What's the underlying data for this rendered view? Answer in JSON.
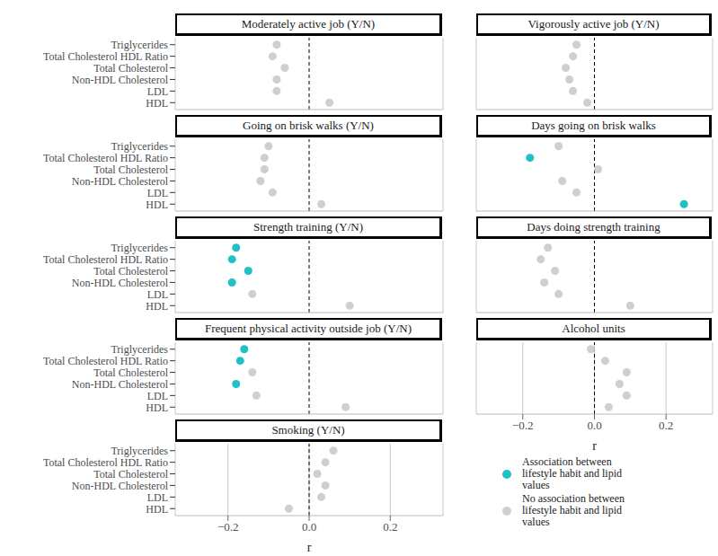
{
  "chart_data": [
    {
      "type": "scatter",
      "title": "Moderately active job (Y/N)",
      "categories": [
        "Triglycerides",
        "Total Cholesterol HDL Ratio",
        "Total Cholesterol",
        "Non-HDL Cholesterol",
        "LDL",
        "HDL"
      ],
      "series": [
        {
          "name": "Association between lifestyle habit and lipid values",
          "color": "#20c0c7",
          "values": [
            null,
            null,
            null,
            null,
            null,
            null
          ]
        },
        {
          "name": "No association between lifestyle habit and lipid values",
          "color": "#cfcfcf",
          "values": [
            -0.08,
            -0.09,
            -0.06,
            -0.08,
            -0.08,
            0.05
          ]
        }
      ],
      "xlim": [
        -0.33,
        0.33
      ],
      "xticks": [
        {
          "value": -0.2,
          "label": "−0.2"
        },
        {
          "value": 0,
          "label": "0.0"
        },
        0.2
      ],
      "grid": true,
      "tick_labels": "y"
    },
    {
      "type": "scatter",
      "title": "Vigorously active job (Y/N)",
      "categories": [
        "Triglycerides",
        "Total Cholesterol HDL Ratio",
        "Total Cholesterol",
        "Non-HDL Cholesterol",
        "LDL",
        "HDL"
      ],
      "series": [
        {
          "name": "Association between lifestyle habit and lipid values",
          "color": "#20c0c7",
          "values": [
            null,
            null,
            null,
            null,
            null,
            null
          ]
        },
        {
          "name": "No association between lifestyle habit and lipid values",
          "color": "#cfcfcf",
          "values": [
            -0.05,
            -0.06,
            -0.08,
            -0.07,
            -0.06,
            -0.02
          ]
        }
      ],
      "xlim": [
        -0.33,
        0.33
      ],
      "xticks": [
        {
          "value": -0.2,
          "label": "−0.2"
        },
        {
          "value": 0,
          "label": "0.0"
        },
        0.2
      ],
      "grid": true,
      "tick_labels": false
    },
    {
      "type": "scatter",
      "title": "Going on brisk walks (Y/N)",
      "categories": [
        "Triglycerides",
        "Total Cholesterol HDL Ratio",
        "Total Cholesterol",
        "Non-HDL Cholesterol",
        "LDL",
        "HDL"
      ],
      "series": [
        {
          "name": "Association between lifestyle habit and lipid values",
          "color": "#20c0c7",
          "values": [
            null,
            null,
            null,
            null,
            null,
            null
          ]
        },
        {
          "name": "No association between lifestyle habit and lipid values",
          "color": "#cfcfcf",
          "values": [
            -0.1,
            -0.11,
            -0.11,
            -0.12,
            -0.09,
            0.03
          ]
        }
      ],
      "xlim": [
        -0.33,
        0.33
      ],
      "xticks": [
        {
          "value": -0.2,
          "label": "−0.2"
        },
        {
          "value": 0,
          "label": "0.0"
        },
        0.2
      ],
      "grid": true,
      "tick_labels": "y"
    },
    {
      "type": "scatter",
      "title": "Days going on brisk walks",
      "categories": [
        "Triglycerides",
        "Total Cholesterol HDL Ratio",
        "Total Cholesterol",
        "Non-HDL Cholesterol",
        "LDL",
        "HDL"
      ],
      "series": [
        {
          "name": "Association between lifestyle habit and lipid values",
          "color": "#20c0c7",
          "values": [
            null,
            -0.18,
            null,
            null,
            null,
            0.25
          ]
        },
        {
          "name": "No association between lifestyle habit and lipid values",
          "color": "#cfcfcf",
          "values": [
            -0.1,
            null,
            0.01,
            -0.09,
            -0.05,
            null
          ]
        }
      ],
      "xlim": [
        -0.33,
        0.33
      ],
      "xticks": [
        {
          "value": -0.2,
          "label": "−0.2"
        },
        {
          "value": 0,
          "label": "0.0"
        },
        0.2
      ],
      "grid": true,
      "tick_labels": false
    },
    {
      "type": "scatter",
      "title": "Strength training (Y/N)",
      "categories": [
        "Triglycerides",
        "Total Cholesterol HDL Ratio",
        "Total Cholesterol",
        "Non-HDL Cholesterol",
        "LDL",
        "HDL"
      ],
      "series": [
        {
          "name": "Association between lifestyle habit and lipid values",
          "color": "#20c0c7",
          "values": [
            -0.18,
            -0.19,
            -0.15,
            -0.19,
            null,
            null
          ]
        },
        {
          "name": "No association between lifestyle habit and lipid values",
          "color": "#cfcfcf",
          "values": [
            null,
            null,
            null,
            null,
            -0.14,
            0.1
          ]
        }
      ],
      "xlim": [
        -0.33,
        0.33
      ],
      "xticks": [
        {
          "value": -0.2,
          "label": "−0.2"
        },
        {
          "value": 0,
          "label": "0.0"
        },
        0.2
      ],
      "grid": true,
      "tick_labels": "y"
    },
    {
      "type": "scatter",
      "title": "Days doing strength training",
      "categories": [
        "Triglycerides",
        "Total Cholesterol HDL Ratio",
        "Total Cholesterol",
        "Non-HDL Cholesterol",
        "LDL",
        "HDL"
      ],
      "series": [
        {
          "name": "Association between lifestyle habit and lipid values",
          "color": "#20c0c7",
          "values": [
            null,
            null,
            null,
            null,
            null,
            null
          ]
        },
        {
          "name": "No association between lifestyle habit and lipid values",
          "color": "#cfcfcf",
          "values": [
            -0.13,
            -0.15,
            -0.11,
            -0.14,
            -0.1,
            0.1
          ]
        }
      ],
      "xlim": [
        -0.33,
        0.33
      ],
      "xticks": [
        {
          "value": -0.2,
          "label": "−0.2"
        },
        {
          "value": 0,
          "label": "0.0"
        },
        0.2
      ],
      "grid": true,
      "tick_labels": false
    },
    {
      "type": "scatter",
      "title": "Frequent physical activity outside job (Y/N)",
      "categories": [
        "Triglycerides",
        "Total Cholesterol HDL Ratio",
        "Total Cholesterol",
        "Non-HDL Cholesterol",
        "LDL",
        "HDL"
      ],
      "series": [
        {
          "name": "Association between lifestyle habit and lipid values",
          "color": "#20c0c7",
          "values": [
            -0.16,
            -0.17,
            null,
            -0.18,
            null,
            null
          ]
        },
        {
          "name": "No association between lifestyle habit and lipid values",
          "color": "#cfcfcf",
          "values": [
            null,
            null,
            -0.14,
            null,
            -0.13,
            0.09
          ]
        }
      ],
      "xlim": [
        -0.33,
        0.33
      ],
      "xticks": [
        {
          "value": -0.2,
          "label": "−0.2"
        },
        {
          "value": 0,
          "label": "0.0"
        },
        0.2
      ],
      "grid": true,
      "tick_labels": "y"
    },
    {
      "type": "scatter",
      "title": "Alcohol units",
      "x_label": "r",
      "categories": [
        "Triglycerides",
        "Total Cholesterol HDL Ratio",
        "Total Cholesterol",
        "Non-HDL Cholesterol",
        "LDL",
        "HDL"
      ],
      "series": [
        {
          "name": "Association between lifestyle habit and lipid values",
          "color": "#20c0c7",
          "values": [
            null,
            null,
            null,
            null,
            null,
            null
          ]
        },
        {
          "name": "No association between lifestyle habit and lipid values",
          "color": "#cfcfcf",
          "values": [
            -0.01,
            0.03,
            0.09,
            0.07,
            0.09,
            0.04
          ]
        }
      ],
      "xlim": [
        -0.33,
        0.33
      ],
      "xticks": [
        {
          "value": -0.2,
          "label": "−0.2"
        },
        {
          "value": 0,
          "label": "0.0"
        },
        0.2
      ],
      "grid": true,
      "tick_labels": "x"
    },
    {
      "type": "scatter",
      "title": "Smoking (Y/N)",
      "x_label": "r",
      "categories": [
        "Triglycerides",
        "Total Cholesterol HDL Ratio",
        "Total Cholesterol",
        "Non-HDL Cholesterol",
        "LDL",
        "HDL"
      ],
      "series": [
        {
          "name": "Association between lifestyle habit and lipid values",
          "color": "#20c0c7",
          "values": [
            null,
            null,
            null,
            null,
            null,
            null
          ]
        },
        {
          "name": "No association between lifestyle habit and lipid values",
          "color": "#cfcfcf",
          "values": [
            0.06,
            0.04,
            0.02,
            0.04,
            0.03,
            -0.05
          ]
        }
      ],
      "xlim": [
        -0.33,
        0.33
      ],
      "xticks": [
        {
          "value": -0.2,
          "label": "−0.2"
        },
        {
          "value": 0,
          "label": "0.0"
        },
        0.2
      ],
      "grid": true,
      "tick_labels": true
    }
  ]
}
